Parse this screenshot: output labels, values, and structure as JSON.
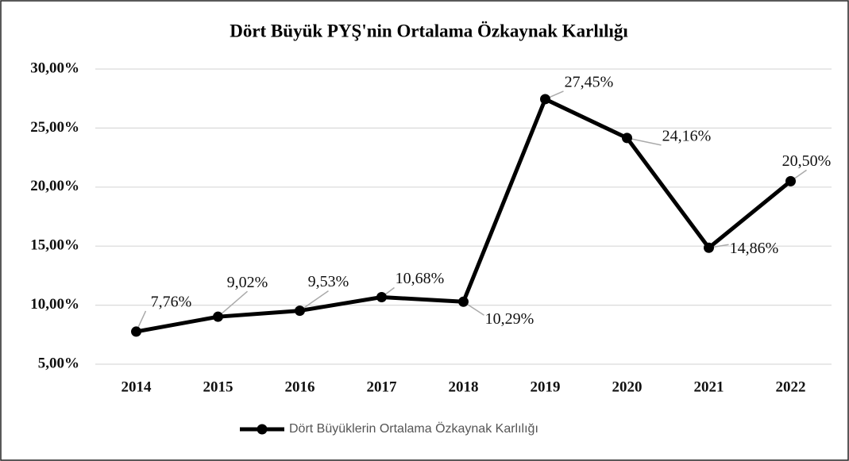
{
  "chart_data": {
    "type": "line",
    "title": "Dört Büyük PYŞ'nin Ortalama Özkaynak Karlılığı",
    "categories": [
      "2014",
      "2015",
      "2016",
      "2017",
      "2018",
      "2019",
      "2020",
      "2021",
      "2022"
    ],
    "series": [
      {
        "name": "Dört Büyüklerin Ortalama Özkaynak Karlılığı",
        "color": "#000000",
        "values": [
          7.76,
          9.02,
          9.53,
          10.68,
          10.29,
          27.45,
          24.16,
          14.86,
          20.5
        ],
        "value_labels": [
          "7,76%",
          "9,02%",
          "9,53%",
          "10,68%",
          "10,29%",
          "27,45%",
          "24,16%",
          "14,86%",
          "20,50%"
        ]
      }
    ],
    "ylim": [
      5,
      30
    ],
    "yticks": [
      {
        "value": 5,
        "label": "5,00%"
      },
      {
        "value": 10,
        "label": "10,00%"
      },
      {
        "value": 15,
        "label": "15,00%"
      },
      {
        "value": 20,
        "label": "20,00%"
      },
      {
        "value": 25,
        "label": "25,00%"
      },
      {
        "value": 30,
        "label": "30,00%"
      }
    ],
    "grid": true,
    "legend": "bottom"
  }
}
